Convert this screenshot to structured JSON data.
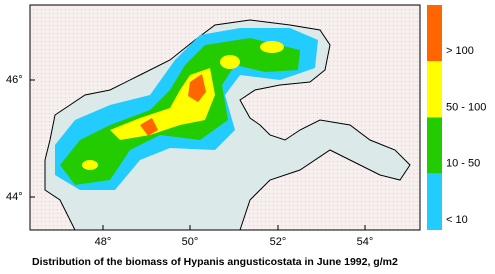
{
  "map": {
    "y_ticks": [
      "46°",
      "44°"
    ],
    "x_ticks": [
      "48°",
      "50°",
      "52°",
      "54°"
    ]
  },
  "legend": [
    {
      "label": "> 100",
      "color": "#ff6600"
    },
    {
      "label": "50 - 100",
      "color": "#ffff00"
    },
    {
      "label": "10 - 50",
      "color": "#22cc00"
    },
    {
      "label": "< 10",
      "color": "#22ccff"
    }
  ],
  "caption": "Distribution of the biomass of Hypanis angusticostata in June 1992, g/m2"
}
